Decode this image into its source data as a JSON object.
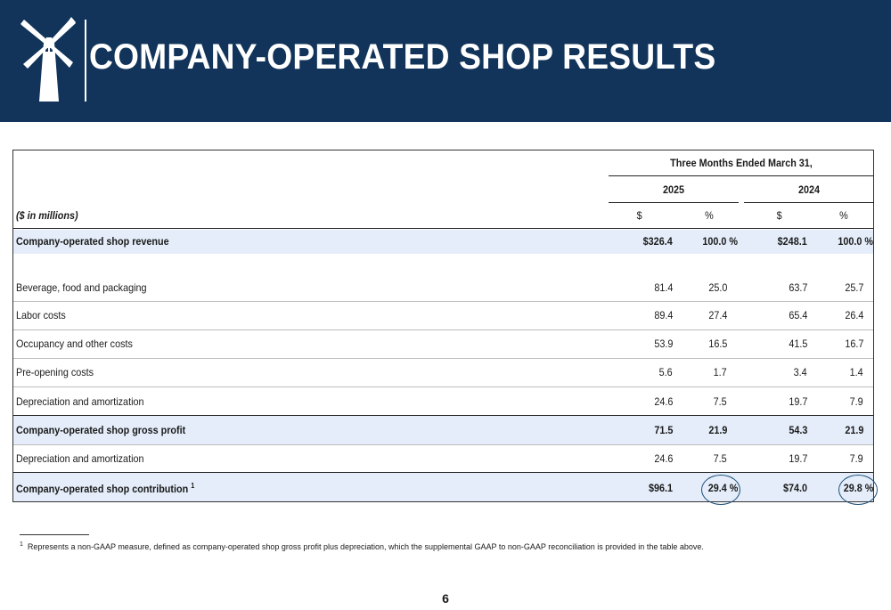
{
  "header": {
    "title": "COMPANY-OPERATED SHOP RESULTS",
    "logo_icon": "windmill-icon",
    "background_color": "#12345a"
  },
  "table": {
    "period_header": "Three Months Ended March 31,",
    "years": [
      "2025",
      "2024"
    ],
    "units_label": "($ in millions)",
    "column_headers": [
      "$",
      "%",
      "$",
      "%"
    ],
    "rows": [
      {
        "label": "Company-operated shop revenue",
        "values": [
          "$326.4",
          "100.0 %",
          "$248.1",
          "100.0 %"
        ],
        "bold": true
      },
      {
        "label": "Beverage, food and packaging",
        "values": [
          "81.4",
          "25.0",
          "63.7",
          "25.7"
        ],
        "bold": false
      },
      {
        "label": "Labor costs",
        "values": [
          "89.4",
          "27.4",
          "65.4",
          "26.4"
        ],
        "bold": false
      },
      {
        "label": "Occupancy and other costs",
        "values": [
          "53.9",
          "16.5",
          "41.5",
          "16.7"
        ],
        "bold": false
      },
      {
        "label": "Pre-opening costs",
        "values": [
          "5.6",
          "1.7",
          "3.4",
          "1.4"
        ],
        "bold": false
      },
      {
        "label": "Depreciation and amortization",
        "values": [
          "24.6",
          "7.5",
          "19.7",
          "7.9"
        ],
        "bold": false
      },
      {
        "label": "Company-operated shop gross profit",
        "values": [
          "71.5",
          "21.9",
          "54.3",
          "21.9"
        ],
        "bold": true
      },
      {
        "label": "Depreciation and amortization",
        "values": [
          "24.6",
          "7.5",
          "19.7",
          "7.9"
        ],
        "bold": false
      },
      {
        "label": "Company-operated shop contribution",
        "footnote_ref": "1",
        "values": [
          "$96.1",
          "29.4 %",
          "$74.0",
          "29.8 %"
        ],
        "bold": true
      }
    ],
    "highlight_color": "#e4edf9",
    "circle_color": "#1d4f7a"
  },
  "footnote": {
    "marker": "1",
    "text": "Represents a non-GAAP measure, defined as company-operated shop gross profit plus depreciation, which the supplemental GAAP to non-GAAP reconciliation is provided in the table above."
  },
  "page_number": "6"
}
